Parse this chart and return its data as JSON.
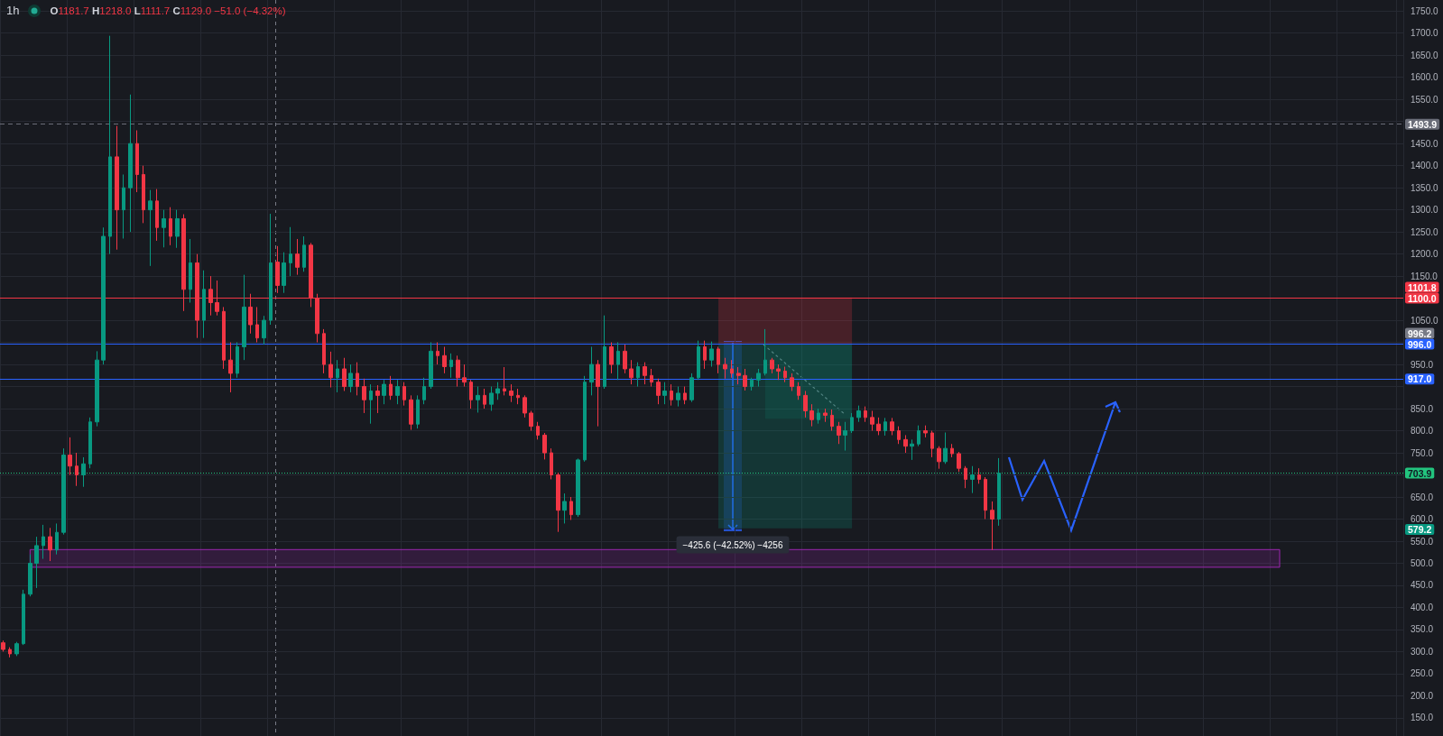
{
  "chart_data": {
    "type": "candlestick",
    "title": "1h",
    "subtitle": "O1181.7 H1218.0 L1111.7 C1129.0 −51.0 (−4.32%)",
    "categories": [
      null,
      null,
      null,
      null,
      null,
      null,
      null,
      null,
      null,
      null,
      null,
      null,
      null,
      null,
      null,
      null,
      null,
      null,
      null,
      null,
      null,
      null,
      null,
      null,
      null,
      null,
      null,
      null,
      null,
      null,
      null,
      null,
      null,
      null,
      null,
      null,
      null,
      null,
      null,
      null,
      null,
      null,
      null,
      null,
      null,
      null,
      null,
      null,
      null,
      null,
      null,
      null,
      null,
      null,
      null,
      null,
      null,
      null,
      null,
      null,
      null,
      null,
      null,
      null,
      null,
      null,
      null,
      null,
      null,
      null,
      null,
      null,
      null,
      null,
      null,
      null,
      null,
      null,
      null,
      null,
      null,
      null,
      null,
      null,
      null,
      null,
      null,
      null,
      null,
      null,
      null,
      null,
      null,
      null,
      null,
      null,
      null,
      null,
      null,
      null,
      null,
      null,
      null,
      null,
      null,
      null,
      null,
      null,
      null,
      null,
      null,
      null,
      null,
      null,
      null,
      null,
      null,
      null,
      null,
      null,
      null,
      null,
      null,
      null,
      null,
      null,
      null,
      null,
      null,
      null,
      null,
      null,
      null,
      null,
      null,
      null,
      null,
      null,
      null,
      null,
      null,
      null,
      null,
      null,
      null,
      null,
      null,
      null,
      null,
      null,
      null,
      null,
      null,
      null,
      null,
      null,
      null,
      null,
      null,
      null,
      null,
      null,
      null,
      null,
      null,
      null,
      null,
      null,
      null,
      null,
      null,
      null,
      null,
      null,
      null,
      null,
      null,
      null,
      null,
      null,
      null,
      null,
      null,
      null,
      null,
      null,
      null,
      null,
      null,
      null,
      null,
      null,
      null,
      null,
      null,
      null,
      null,
      null,
      null,
      null,
      null,
      null,
      null,
      null,
      null,
      null,
      null,
      null,
      null,
      null
    ],
    "ohlc": [
      [
        320,
        325,
        300,
        305
      ],
      [
        305,
        310,
        287,
        295
      ],
      [
        295,
        322,
        290,
        318
      ],
      [
        318,
        440,
        315,
        430
      ],
      [
        430,
        520,
        425,
        500
      ],
      [
        500,
        560,
        444,
        540
      ],
      [
        540,
        587,
        510,
        560
      ],
      [
        560,
        580,
        505,
        530
      ],
      [
        530,
        590,
        520,
        570
      ],
      [
        570,
        760,
        565,
        745
      ],
      [
        745,
        785,
        700,
        720
      ],
      [
        720,
        750,
        675,
        700
      ],
      [
        700,
        740,
        673,
        725
      ],
      [
        725,
        830,
        715,
        820
      ],
      [
        820,
        980,
        810,
        960
      ],
      [
        960,
        1260,
        950,
        1240
      ],
      [
        1240,
        1694,
        1200,
        1420
      ],
      [
        1420,
        1490,
        1210,
        1300
      ],
      [
        1300,
        1380,
        1235,
        1350
      ],
      [
        1350,
        1561,
        1250,
        1450
      ],
      [
        1450,
        1480,
        1340,
        1380
      ],
      [
        1380,
        1400,
        1270,
        1300
      ],
      [
        1300,
        1345,
        1173,
        1320
      ],
      [
        1320,
        1347,
        1230,
        1260
      ],
      [
        1260,
        1300,
        1215,
        1280
      ],
      [
        1280,
        1306,
        1220,
        1240
      ],
      [
        1240,
        1300,
        1214,
        1280
      ],
      [
        1280,
        1290,
        1071,
        1120
      ],
      [
        1120,
        1234,
        1090,
        1180
      ],
      [
        1180,
        1200,
        1010,
        1050
      ],
      [
        1050,
        1163,
        1010,
        1120
      ],
      [
        1120,
        1150,
        1061,
        1090
      ],
      [
        1090,
        1140,
        1061,
        1070
      ],
      [
        1070,
        1080,
        940,
        960
      ],
      [
        960,
        1000,
        887,
        930
      ],
      [
        930,
        1000,
        920,
        990
      ],
      [
        990,
        1153,
        960,
        1080
      ],
      [
        1080,
        1110,
        1020,
        1040
      ],
      [
        1040,
        1080,
        1000,
        1010
      ],
      [
        1010,
        1060,
        995,
        1050
      ],
      [
        1050,
        1291,
        1040,
        1180
      ],
      [
        1181.7,
        1218.0,
        1111.7,
        1129.0
      ],
      [
        1129,
        1204,
        1112,
        1180
      ],
      [
        1180,
        1261,
        1150,
        1200
      ],
      [
        1200,
        1234,
        1153,
        1170
      ],
      [
        1170,
        1240,
        1160,
        1220
      ],
      [
        1220,
        1225,
        1080,
        1100
      ],
      [
        1100,
        1110,
        1000,
        1020
      ],
      [
        1020,
        1030,
        930,
        950
      ],
      [
        950,
        979,
        898,
        920
      ],
      [
        920,
        960,
        887,
        940
      ],
      [
        940,
        965,
        890,
        900
      ],
      [
        900,
        950,
        887,
        930
      ],
      [
        930,
        955,
        880,
        900
      ],
      [
        900,
        918,
        840,
        870
      ],
      [
        870,
        905,
        816,
        890
      ],
      [
        890,
        903,
        840,
        880
      ],
      [
        880,
        915,
        860,
        905
      ],
      [
        905,
        924,
        870,
        880
      ],
      [
        880,
        915,
        860,
        900
      ],
      [
        900,
        910,
        857,
        870
      ],
      [
        870,
        880,
        802,
        815
      ],
      [
        815,
        880,
        805,
        870
      ],
      [
        870,
        920,
        860,
        900
      ],
      [
        900,
        1000,
        895,
        980
      ],
      [
        980,
        1000,
        950,
        970
      ],
      [
        970,
        990,
        930,
        945
      ],
      [
        945,
        975,
        920,
        960
      ],
      [
        960,
        970,
        900,
        920
      ],
      [
        920,
        950,
        900,
        910
      ],
      [
        910,
        915,
        850,
        870
      ],
      [
        870,
        900,
        841,
        880
      ],
      [
        880,
        895,
        850,
        860
      ],
      [
        860,
        900,
        845,
        885
      ],
      [
        885,
        910,
        870,
        895
      ],
      [
        895,
        944,
        880,
        890
      ],
      [
        890,
        905,
        865,
        880
      ],
      [
        880,
        895,
        860,
        875
      ],
      [
        875,
        880,
        830,
        840
      ],
      [
        840,
        845,
        800,
        810
      ],
      [
        810,
        820,
        780,
        790
      ],
      [
        790,
        795,
        735,
        750
      ],
      [
        750,
        760,
        690,
        700
      ],
      [
        700,
        705,
        571,
        620
      ],
      [
        620,
        658,
        590,
        640
      ],
      [
        640,
        650,
        598,
        610
      ],
      [
        610,
        737,
        605,
        734
      ],
      [
        734,
        924,
        730,
        910
      ],
      [
        910,
        990,
        880,
        950
      ],
      [
        950,
        960,
        810,
        900
      ],
      [
        900,
        1061,
        895,
        990
      ],
      [
        990,
        1000,
        930,
        950
      ],
      [
        950,
        1000,
        915,
        980
      ],
      [
        980,
        995,
        930,
        940
      ],
      [
        940,
        960,
        905,
        920
      ],
      [
        920,
        955,
        900,
        945
      ],
      [
        945,
        955,
        905,
        925
      ],
      [
        925,
        940,
        900,
        910
      ],
      [
        910,
        918,
        860,
        880
      ],
      [
        880,
        910,
        860,
        890
      ],
      [
        890,
        905,
        857,
        870
      ],
      [
        870,
        900,
        855,
        885
      ],
      [
        885,
        900,
        860,
        870
      ],
      [
        870,
        930,
        865,
        920
      ],
      [
        920,
        1004,
        915,
        990
      ],
      [
        990,
        1004,
        940,
        960
      ],
      [
        960,
        1002,
        945,
        985
      ],
      [
        985,
        990,
        930,
        950
      ],
      [
        950,
        965,
        918,
        940
      ],
      [
        940,
        960,
        920,
        930
      ],
      [
        930,
        944,
        905,
        925
      ],
      [
        925,
        940,
        891,
        900
      ],
      [
        900,
        920,
        891,
        915
      ],
      [
        915,
        940,
        900,
        930
      ],
      [
        930,
        1030,
        925,
        960
      ],
      [
        960,
        965,
        930,
        940
      ],
      [
        940,
        950,
        915,
        935
      ],
      [
        935,
        945,
        910,
        920
      ],
      [
        920,
        930,
        890,
        900
      ],
      [
        900,
        910,
        870,
        880
      ],
      [
        880,
        890,
        830,
        845
      ],
      [
        845,
        860,
        810,
        825
      ],
      [
        825,
        850,
        816,
        840
      ],
      [
        840,
        850,
        820,
        835
      ],
      [
        835,
        848,
        800,
        810
      ],
      [
        810,
        820,
        770,
        790
      ],
      [
        790,
        820,
        755,
        800
      ],
      [
        800,
        840,
        795,
        830
      ],
      [
        830,
        857,
        820,
        845
      ],
      [
        845,
        855,
        820,
        830
      ],
      [
        830,
        845,
        800,
        815
      ],
      [
        815,
        830,
        790,
        800
      ],
      [
        800,
        829,
        789,
        820
      ],
      [
        820,
        829,
        790,
        800
      ],
      [
        800,
        810,
        770,
        780
      ],
      [
        780,
        790,
        750,
        765
      ],
      [
        765,
        780,
        734,
        770
      ],
      [
        770,
        812,
        765,
        800
      ],
      [
        800,
        812,
        785,
        795
      ],
      [
        795,
        800,
        740,
        760
      ],
      [
        760,
        765,
        714,
        730
      ],
      [
        730,
        796,
        725,
        760
      ],
      [
        760,
        770,
        740,
        748
      ],
      [
        748,
        752,
        707,
        715
      ],
      [
        715,
        720,
        670,
        690
      ],
      [
        690,
        720,
        659,
        700
      ],
      [
        700,
        715,
        680,
        690
      ],
      [
        690,
        695,
        600,
        620
      ],
      [
        620,
        640,
        530,
        600
      ],
      [
        600,
        738,
        585,
        703.9
      ],
      null,
      null,
      null,
      null,
      null,
      null,
      null,
      null,
      null,
      null,
      null,
      null,
      null,
      null,
      null,
      null,
      null,
      null,
      null,
      null,
      null,
      null,
      null,
      null,
      null,
      null,
      null,
      null,
      null,
      null,
      null,
      null,
      null,
      null,
      null,
      null,
      null,
      null,
      null,
      null,
      null,
      null,
      null,
      null,
      null,
      null,
      null,
      null,
      null,
      null,
      null,
      null,
      null,
      null,
      null,
      null,
      null,
      null,
      null,
      null
    ],
    "ylim": [
      109,
      1775
    ],
    "yticks": [
      {
        "value": 150,
        "label": "150.0"
      },
      {
        "value": 200,
        "label": "200.0"
      },
      {
        "value": 250,
        "label": "250.0"
      },
      {
        "value": 300,
        "label": "300.0"
      },
      {
        "value": 350,
        "label": "350.0"
      },
      {
        "value": 400,
        "label": "400.0"
      },
      {
        "value": 450,
        "label": "450.0"
      },
      {
        "value": 500,
        "label": "500.0"
      },
      {
        "value": 550,
        "label": "550.0"
      },
      {
        "value": 600,
        "label": "600.0"
      },
      {
        "value": 650,
        "label": "650.0"
      },
      {
        "value": 700,
        "label": null
      },
      {
        "value": 750,
        "label": "750.0"
      },
      {
        "value": 800,
        "label": "800.0"
      },
      {
        "value": 850,
        "label": "850.0"
      },
      {
        "value": 900,
        "label": null
      },
      {
        "value": 950,
        "label": "950.0"
      },
      {
        "value": 1000,
        "label": null
      },
      {
        "value": 1050,
        "label": "1050.0"
      },
      {
        "value": 1100,
        "label": null
      },
      {
        "value": 1150,
        "label": "1150.0"
      },
      {
        "value": 1200,
        "label": "1200.0"
      },
      {
        "value": 1250,
        "label": "1250.0"
      },
      {
        "value": 1300,
        "label": "1300.0"
      },
      {
        "value": 1350,
        "label": "1350.0"
      },
      {
        "value": 1400,
        "label": "1400.0"
      },
      {
        "value": 1450,
        "label": "1450.0"
      },
      {
        "value": 1500,
        "label": null
      },
      {
        "value": 1550,
        "label": "1550.0"
      },
      {
        "value": 1600,
        "label": "1600.0"
      },
      {
        "value": 1650,
        "label": "1650.0"
      },
      {
        "value": 1700,
        "label": "1700.0"
      },
      {
        "value": 1750,
        "label": "1750.0"
      }
    ],
    "grid": true,
    "tick_labels": "y",
    "ref_lines": [
      {
        "axis": "y",
        "value": 1493.9,
        "label": "1493.9",
        "color": "#6a6d78",
        "line_style": "dashed"
      },
      {
        "axis": "y",
        "value": 1100,
        "label": "1100.0",
        "color": "#f23645"
      },
      {
        "axis": "y",
        "value": 996,
        "label": "996.0",
        "color": "#2962ff"
      },
      {
        "axis": "y",
        "value": 917,
        "label": "917.0",
        "color": "#2962ff"
      },
      {
        "axis": "y",
        "value": 703.9,
        "label": "703.9",
        "color": "#22c47e",
        "line_style": "dotted"
      }
    ],
    "bands": [
      {
        "axis": "y",
        "from": 491,
        "to": 531,
        "color": "#9c27b0"
      },
      {
        "axis": "y",
        "from": 996.2,
        "to": 1101.8,
        "color": "#f23645"
      },
      {
        "axis": "y",
        "from": 579.2,
        "to": 996.2,
        "color": "#089981"
      },
      {
        "axis": "y",
        "from": 827,
        "to": 996.2,
        "color": "#089981"
      }
    ],
    "annotations": [
      {
        "text": "1101.8",
        "y": 1101.8
      },
      {
        "text": "996.2",
        "y": 996.2
      },
      {
        "text": "579.2",
        "y": 579.2
      },
      "−425.6 (−42.52%) −4256"
    ]
  }
}
